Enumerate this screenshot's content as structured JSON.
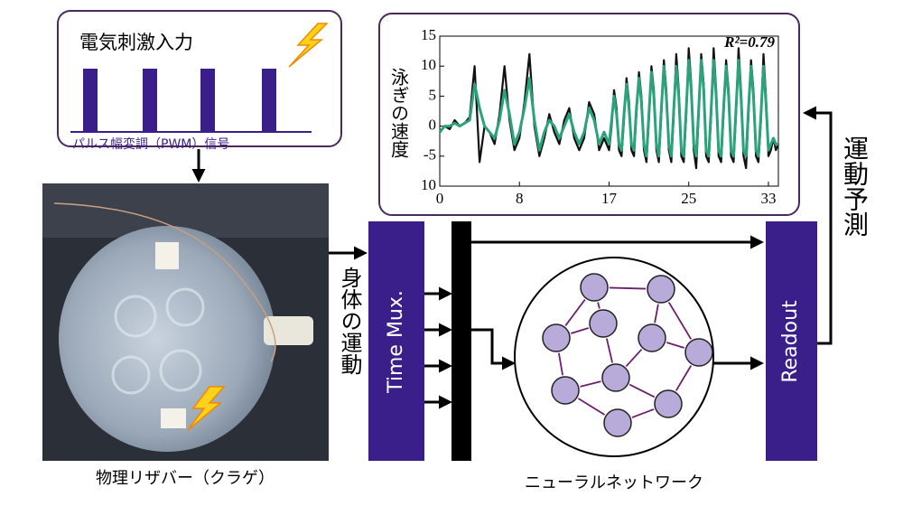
{
  "input": {
    "title": "電気刺激入力",
    "signal": "パルス幅変調（PWM）信号"
  },
  "reservoir": {
    "caption": "物理リザバー（クラゲ）",
    "motion": "身体の運動"
  },
  "mux": {
    "label": "Time Mux."
  },
  "network": {
    "caption": "ニューラルネットワーク"
  },
  "readout": {
    "label": "Readout",
    "output": "運動予測"
  },
  "chart_data": {
    "type": "line",
    "ylabel": "泳ぎの速度",
    "annotation": "R²=0.79",
    "xlim": [
      0,
      34
    ],
    "ylim": [
      -10,
      15
    ],
    "xticks": [
      0,
      8,
      17,
      25,
      33
    ],
    "yticks": [
      15,
      10,
      5,
      0,
      -5,
      {
        "value": -10,
        "label": "10"
      }
    ],
    "x": [
      0,
      0.5,
      1,
      1.5,
      2,
      2.5,
      3,
      3.5,
      4,
      4.5,
      5,
      5.5,
      6,
      6.5,
      7,
      7.5,
      8,
      8.5,
      9,
      9.5,
      10,
      10.5,
      11,
      11.5,
      12,
      12.5,
      13,
      13.5,
      14,
      14.5,
      15,
      15.5,
      16,
      16.5,
      17,
      17.25,
      17.5,
      17.75,
      18,
      18.25,
      18.5,
      18.75,
      19,
      19.25,
      19.5,
      19.75,
      20,
      20.25,
      20.5,
      20.75,
      21,
      21.25,
      21.5,
      21.75,
      22,
      22.25,
      22.5,
      22.75,
      23,
      23.25,
      23.5,
      23.75,
      24,
      24.25,
      24.5,
      24.75,
      25,
      25.25,
      25.5,
      25.75,
      26,
      26.25,
      26.5,
      26.75,
      27,
      27.25,
      27.5,
      27.75,
      28,
      28.25,
      28.5,
      28.75,
      29,
      29.25,
      29.5,
      29.75,
      30,
      30.25,
      30.5,
      30.75,
      31,
      31.25,
      31.5,
      31.75,
      32,
      32.25,
      32.5,
      32.75,
      33,
      33.25,
      33.5,
      33.75,
      34
    ],
    "series": [
      {
        "color": "#111111",
        "values": [
          -1,
          0,
          -0.5,
          1,
          0,
          0.5,
          1.5,
          10,
          -6,
          0,
          -1,
          -3,
          2,
          10,
          1,
          -4,
          -2,
          4,
          12,
          0,
          -5,
          -2,
          2,
          -1,
          -3,
          1,
          3,
          -2,
          -4,
          -2,
          4,
          2,
          -4,
          -2,
          -4,
          0,
          6,
          3,
          -4,
          -5,
          1,
          8,
          4,
          -4,
          -5,
          2,
          9,
          5,
          -4,
          -6,
          1,
          10,
          6,
          -4,
          -6,
          2,
          11,
          6,
          -4,
          -6,
          2,
          12,
          6,
          -5,
          -6,
          2,
          13,
          7,
          -4,
          -7,
          2,
          12,
          7,
          -5,
          -6,
          2,
          13,
          6,
          -5,
          -6,
          2,
          11,
          6,
          -5,
          -6,
          2,
          13,
          6,
          -5,
          -7,
          2,
          11,
          6,
          -5,
          -6,
          1,
          12,
          5,
          -5,
          -4,
          -2,
          -4,
          -3
        ]
      },
      {
        "color": "#2aa37a",
        "values": [
          -1,
          0,
          0,
          0.5,
          0,
          0.5,
          1,
          7,
          3,
          0,
          -1,
          -2,
          1,
          6,
          2,
          -3,
          -1,
          3,
          8,
          1,
          -4,
          -1,
          1,
          0,
          -2,
          0,
          2,
          -1,
          -3,
          -1,
          3,
          1,
          -3,
          -1,
          -3,
          1,
          5,
          2,
          -3,
          -4,
          2,
          7,
          3,
          -3,
          -4,
          3,
          8,
          4,
          -3,
          -5,
          2,
          9,
          5,
          -3,
          -5,
          3,
          10,
          5,
          -3,
          -5,
          3,
          10,
          5,
          -4,
          -5,
          3,
          11,
          6,
          -3,
          -5,
          3,
          11,
          6,
          -4,
          -5,
          3,
          11,
          5,
          -4,
          -5,
          3,
          10,
          5,
          -4,
          -5,
          3,
          11,
          5,
          -4,
          -5,
          3,
          10,
          5,
          -4,
          -5,
          2,
          10,
          4,
          -4,
          -3,
          -2,
          -3,
          -3
        ]
      }
    ]
  }
}
